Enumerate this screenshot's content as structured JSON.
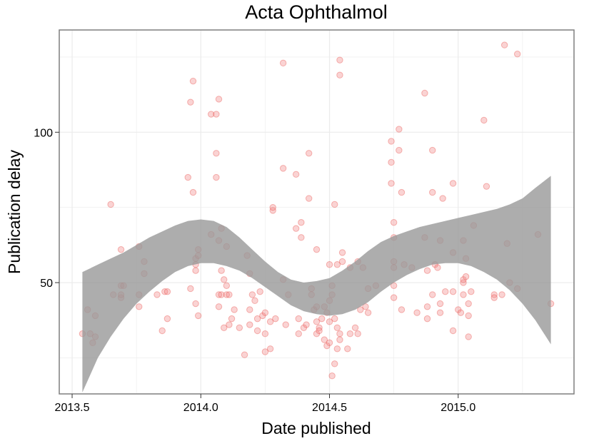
{
  "chart_data": {
    "type": "scatter",
    "title": "Acta Ophthalmol",
    "xlabel": "Date published",
    "ylabel": "Publication delay",
    "xlim": [
      2013.45,
      2015.45
    ],
    "ylim": [
      13,
      134
    ],
    "x_ticks": [
      2013.5,
      2014.0,
      2014.5,
      2015.0
    ],
    "x_tick_labels": [
      "2013.5",
      "2014.0",
      "2014.5",
      "2015.0"
    ],
    "y_ticks": [
      50,
      100
    ],
    "y_tick_labels": [
      "50",
      "100"
    ],
    "grid": true,
    "legend": "none",
    "point_color": "#f08080",
    "band_color": "#999999",
    "points": [
      [
        2013.54,
        33
      ],
      [
        2013.56,
        41
      ],
      [
        2013.57,
        33
      ],
      [
        2013.58,
        30
      ],
      [
        2013.59,
        39
      ],
      [
        2013.59,
        32
      ],
      [
        2013.65,
        76
      ],
      [
        2013.66,
        46
      ],
      [
        2013.69,
        61
      ],
      [
        2013.69,
        49
      ],
      [
        2013.7,
        49
      ],
      [
        2013.69,
        45
      ],
      [
        2013.69,
        46
      ],
      [
        2013.76,
        62
      ],
      [
        2013.76,
        46
      ],
      [
        2013.76,
        42
      ],
      [
        2013.78,
        57
      ],
      [
        2013.78,
        53
      ],
      [
        2013.83,
        46
      ],
      [
        2013.85,
        34
      ],
      [
        2013.86,
        47
      ],
      [
        2013.87,
        38
      ],
      [
        2013.87,
        47
      ],
      [
        2013.95,
        85
      ],
      [
        2013.96,
        110
      ],
      [
        2013.96,
        48
      ],
      [
        2013.97,
        117
      ],
      [
        2013.97,
        80
      ],
      [
        2013.98,
        58
      ],
      [
        2013.98,
        56
      ],
      [
        2013.98,
        54
      ],
      [
        2013.99,
        61
      ],
      [
        2013.99,
        59
      ],
      [
        2013.98,
        43
      ],
      [
        2013.99,
        39
      ],
      [
        2014.04,
        106
      ],
      [
        2014.04,
        66
      ],
      [
        2014.06,
        106
      ],
      [
        2014.06,
        93
      ],
      [
        2014.06,
        85
      ],
      [
        2014.07,
        111
      ],
      [
        2014.07,
        64
      ],
      [
        2014.08,
        68
      ],
      [
        2014.07,
        46
      ],
      [
        2014.08,
        46
      ],
      [
        2014.07,
        42
      ],
      [
        2014.08,
        54
      ],
      [
        2014.09,
        51
      ],
      [
        2014.09,
        35
      ],
      [
        2014.1,
        62
      ],
      [
        2014.1,
        49
      ],
      [
        2014.1,
        46
      ],
      [
        2014.11,
        46
      ],
      [
        2014.11,
        36
      ],
      [
        2014.12,
        38
      ],
      [
        2014.13,
        41
      ],
      [
        2014.15,
        35
      ],
      [
        2014.17,
        26
      ],
      [
        2014.18,
        59
      ],
      [
        2014.19,
        53
      ],
      [
        2014.19,
        41
      ],
      [
        2014.19,
        36
      ],
      [
        2014.2,
        46
      ],
      [
        2014.21,
        44
      ],
      [
        2014.22,
        38
      ],
      [
        2014.22,
        34
      ],
      [
        2014.23,
        47
      ],
      [
        2014.24,
        39
      ],
      [
        2014.25,
        40
      ],
      [
        2014.25,
        33
      ],
      [
        2014.25,
        27
      ],
      [
        2014.27,
        28
      ],
      [
        2014.27,
        37
      ],
      [
        2014.28,
        74
      ],
      [
        2014.28,
        75
      ],
      [
        2014.29,
        38
      ],
      [
        2014.32,
        123
      ],
      [
        2014.32,
        88
      ],
      [
        2014.32,
        51
      ],
      [
        2014.33,
        36
      ],
      [
        2014.34,
        46
      ],
      [
        2014.37,
        86
      ],
      [
        2014.37,
        68
      ],
      [
        2014.38,
        38
      ],
      [
        2014.38,
        33
      ],
      [
        2014.39,
        70
      ],
      [
        2014.39,
        65
      ],
      [
        2014.4,
        35
      ],
      [
        2014.41,
        36
      ],
      [
        2014.42,
        93
      ],
      [
        2014.42,
        78
      ],
      [
        2014.43,
        48
      ],
      [
        2014.43,
        46
      ],
      [
        2014.44,
        41
      ],
      [
        2014.45,
        42
      ],
      [
        2014.45,
        61
      ],
      [
        2014.45,
        33
      ],
      [
        2014.45,
        37
      ],
      [
        2014.46,
        35
      ],
      [
        2014.46,
        34
      ],
      [
        2014.47,
        38
      ],
      [
        2014.48,
        31
      ],
      [
        2014.48,
        42
      ],
      [
        2014.49,
        40
      ],
      [
        2014.49,
        29
      ],
      [
        2014.5,
        56
      ],
      [
        2014.5,
        44
      ],
      [
        2014.5,
        37
      ],
      [
        2014.5,
        30
      ],
      [
        2014.51,
        19
      ],
      [
        2014.51,
        46
      ],
      [
        2014.51,
        49
      ],
      [
        2014.52,
        76
      ],
      [
        2014.52,
        23
      ],
      [
        2014.52,
        38
      ],
      [
        2014.53,
        28
      ],
      [
        2014.53,
        56
      ],
      [
        2014.53,
        35
      ],
      [
        2014.54,
        124
      ],
      [
        2014.54,
        119
      ],
      [
        2014.54,
        33
      ],
      [
        2014.54,
        31
      ],
      [
        2014.55,
        57
      ],
      [
        2014.55,
        60
      ],
      [
        2014.57,
        28
      ],
      [
        2014.58,
        55
      ],
      [
        2014.58,
        33
      ],
      [
        2014.6,
        35
      ],
      [
        2014.61,
        33
      ],
      [
        2014.61,
        57
      ],
      [
        2014.62,
        41
      ],
      [
        2014.63,
        55
      ],
      [
        2014.64,
        42
      ],
      [
        2014.65,
        40
      ],
      [
        2014.65,
        48
      ],
      [
        2014.68,
        49
      ],
      [
        2014.74,
        97
      ],
      [
        2014.74,
        90
      ],
      [
        2014.74,
        83
      ],
      [
        2014.75,
        70
      ],
      [
        2014.75,
        65
      ],
      [
        2014.75,
        57
      ],
      [
        2014.75,
        55
      ],
      [
        2014.75,
        49
      ],
      [
        2014.75,
        45
      ],
      [
        2014.77,
        94
      ],
      [
        2014.77,
        101
      ],
      [
        2014.78,
        80
      ],
      [
        2014.78,
        41
      ],
      [
        2014.79,
        56
      ],
      [
        2014.82,
        55
      ],
      [
        2014.84,
        40
      ],
      [
        2014.87,
        113
      ],
      [
        2014.87,
        65
      ],
      [
        2014.88,
        38
      ],
      [
        2014.88,
        54
      ],
      [
        2014.88,
        42
      ],
      [
        2014.9,
        94
      ],
      [
        2014.9,
        80
      ],
      [
        2014.9,
        46
      ],
      [
        2014.91,
        56
      ],
      [
        2014.92,
        55
      ],
      [
        2014.93,
        64
      ],
      [
        2014.93,
        43
      ],
      [
        2014.93,
        40
      ],
      [
        2014.94,
        78
      ],
      [
        2014.95,
        47
      ],
      [
        2014.98,
        83
      ],
      [
        2014.98,
        60
      ],
      [
        2014.98,
        47
      ],
      [
        2014.98,
        34
      ],
      [
        2015.0,
        41
      ],
      [
        2015.01,
        40
      ],
      [
        2015.02,
        64
      ],
      [
        2015.02,
        46
      ],
      [
        2015.02,
        50
      ],
      [
        2015.02,
        51
      ],
      [
        2015.03,
        52
      ],
      [
        2015.03,
        58
      ],
      [
        2015.04,
        43
      ],
      [
        2015.04,
        39
      ],
      [
        2015.04,
        32
      ],
      [
        2015.05,
        47
      ],
      [
        2015.06,
        69
      ],
      [
        2015.1,
        104
      ],
      [
        2015.11,
        82
      ],
      [
        2015.14,
        46
      ],
      [
        2015.14,
        45
      ],
      [
        2015.17,
        46
      ],
      [
        2015.18,
        129
      ],
      [
        2015.19,
        63
      ],
      [
        2015.2,
        50
      ],
      [
        2015.23,
        126
      ],
      [
        2015.23,
        48
      ],
      [
        2015.31,
        66
      ],
      [
        2015.36,
        43
      ]
    ],
    "smooth": {
      "x": [
        2013.54,
        2013.6,
        2013.65,
        2013.7,
        2013.75,
        2013.8,
        2013.85,
        2013.9,
        2013.95,
        2014.0,
        2014.05,
        2014.1,
        2014.15,
        2014.2,
        2014.25,
        2014.3,
        2014.35,
        2014.4,
        2014.45,
        2014.5,
        2014.55,
        2014.6,
        2014.65,
        2014.7,
        2014.75,
        2014.8,
        2014.85,
        2014.9,
        2014.95,
        2015.0,
        2015.05,
        2015.1,
        2015.15,
        2015.2,
        2015.25,
        2015.3,
        2015.36
      ],
      "upper": [
        53.5,
        56,
        58,
        60,
        62.5,
        65,
        67,
        69,
        70.5,
        71,
        70.5,
        68.5,
        65,
        61,
        57,
        53.5,
        51,
        50,
        50.5,
        51.5,
        54,
        57,
        60.5,
        63.5,
        65.5,
        67,
        68.5,
        69.5,
        70.5,
        71.5,
        72.5,
        73.5,
        74.5,
        76,
        78,
        81.5,
        85.5
      ],
      "lower": [
        13.5,
        25,
        32,
        38,
        43,
        47,
        50.5,
        53.5,
        55.5,
        56.5,
        56.5,
        55.5,
        54,
        51.5,
        48.5,
        45.5,
        42.5,
        40.5,
        39.5,
        39,
        39.5,
        41,
        43.5,
        47,
        50,
        52.5,
        54.5,
        56,
        56.5,
        56.5,
        55.5,
        53.5,
        51,
        47.5,
        43,
        37.5,
        29.5
      ]
    }
  }
}
